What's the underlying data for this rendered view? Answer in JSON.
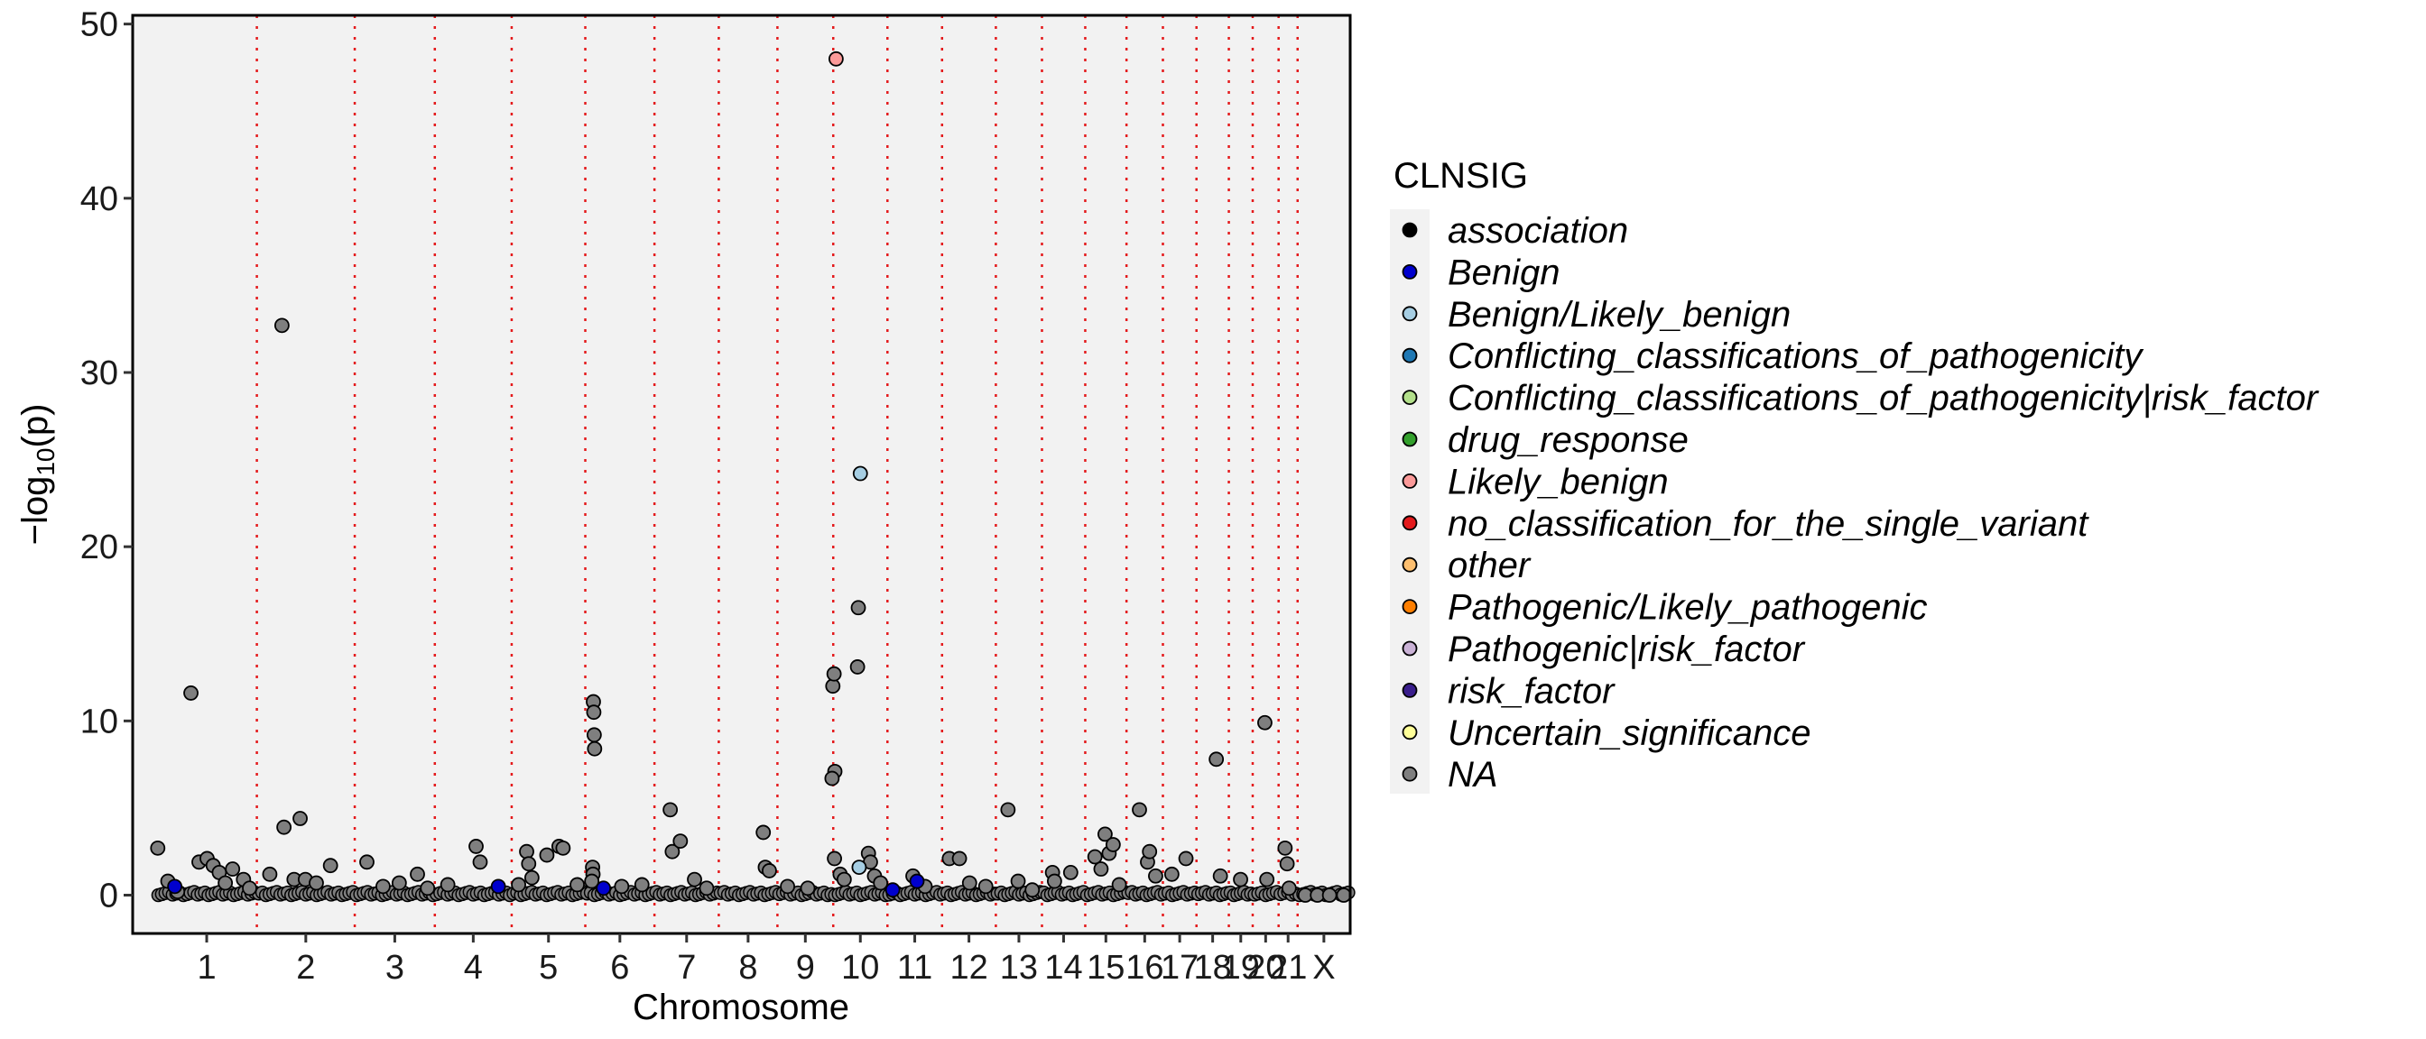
{
  "chart_data": {
    "type": "scatter",
    "title": "",
    "xlabel": "Chromosome",
    "ylabel_prefix": "−log",
    "ylabel_sub": "10",
    "ylabel_suffix": "(p)",
    "ylim": [
      -2.2,
      50.5
    ],
    "yticks": [
      0,
      10,
      20,
      30,
      40,
      50
    ],
    "grid": false,
    "background": "#f2f2f2",
    "separator_color": "#e41a1c",
    "chromosomes": [
      {
        "label": "1",
        "start": 0,
        "end": 248
      },
      {
        "label": "2",
        "start": 248,
        "end": 490
      },
      {
        "label": "3",
        "start": 490,
        "end": 688
      },
      {
        "label": "4",
        "start": 688,
        "end": 878
      },
      {
        "label": "5",
        "start": 878,
        "end": 1060
      },
      {
        "label": "6",
        "start": 1060,
        "end": 1231
      },
      {
        "label": "7",
        "start": 1231,
        "end": 1390
      },
      {
        "label": "8",
        "start": 1390,
        "end": 1535
      },
      {
        "label": "9",
        "start": 1535,
        "end": 1673
      },
      {
        "label": "10",
        "start": 1673,
        "end": 1807
      },
      {
        "label": "11",
        "start": 1807,
        "end": 1942
      },
      {
        "label": "12",
        "start": 1942,
        "end": 2075
      },
      {
        "label": "13",
        "start": 2075,
        "end": 2189
      },
      {
        "label": "14",
        "start": 2189,
        "end": 2296
      },
      {
        "label": "15",
        "start": 2296,
        "end": 2398
      },
      {
        "label": "16",
        "start": 2398,
        "end": 2488
      },
      {
        "label": "17",
        "start": 2488,
        "end": 2571
      },
      {
        "label": "18",
        "start": 2571,
        "end": 2651
      },
      {
        "label": "19",
        "start": 2651,
        "end": 2710
      },
      {
        "label": "20",
        "start": 2710,
        "end": 2774
      },
      {
        "label": "21",
        "start": 2774,
        "end": 2821
      },
      {
        "label": "X",
        "start": 2821,
        "end": 2951
      }
    ],
    "legend": {
      "title": "CLNSIG",
      "position": "right",
      "entries": [
        {
          "label": "association",
          "color": "#000000"
        },
        {
          "label": "Benign",
          "color": "#0000cd"
        },
        {
          "label": "Benign/Likely_benign",
          "color": "#a6cee3"
        },
        {
          "label": "Conflicting_classifications_of_pathogenicity",
          "color": "#1f78b4"
        },
        {
          "label": "Conflicting_classifications_of_pathogenicity|risk_factor",
          "color": "#b2df8a"
        },
        {
          "label": "drug_response",
          "color": "#33a02c"
        },
        {
          "label": "Likely_benign",
          "color": "#fb9a99"
        },
        {
          "label": "no_classification_for_the_single_variant",
          "color": "#e31a1c"
        },
        {
          "label": "other",
          "color": "#fdbf6f"
        },
        {
          "label": "Pathogenic/Likely_pathogenic",
          "color": "#ff7f00"
        },
        {
          "label": "Pathogenic|risk_factor",
          "color": "#cab2d6"
        },
        {
          "label": "risk_factor",
          "color": "#3a1e8c"
        },
        {
          "label": "Uncertain_significance",
          "color": "#ffff99"
        },
        {
          "label": "NA",
          "color": "#7f7f7f"
        }
      ]
    },
    "points": [
      {
        "x": 3,
        "y": 2.7,
        "c": "NA"
      },
      {
        "x": 28,
        "y": 0.8,
        "c": "NA"
      },
      {
        "x": 45,
        "y": 0.5,
        "c": "Benign"
      },
      {
        "x": 52,
        "y": 0.2,
        "c": "NA"
      },
      {
        "x": 85,
        "y": 11.6,
        "c": "NA"
      },
      {
        "x": 105,
        "y": 1.9,
        "c": "NA"
      },
      {
        "x": 125,
        "y": 2.1,
        "c": "NA"
      },
      {
        "x": 140,
        "y": 1.7,
        "c": "NA"
      },
      {
        "x": 155,
        "y": 1.3,
        "c": "NA"
      },
      {
        "x": 170,
        "y": 0.7,
        "c": "NA"
      },
      {
        "x": 188,
        "y": 1.5,
        "c": "NA"
      },
      {
        "x": 215,
        "y": 0.9,
        "c": "NA"
      },
      {
        "x": 230,
        "y": 0.4,
        "c": "NA"
      },
      {
        "x": 280,
        "y": 1.2,
        "c": "NA"
      },
      {
        "x": 310,
        "y": 32.7,
        "c": "NA"
      },
      {
        "x": 315,
        "y": 3.9,
        "c": "NA"
      },
      {
        "x": 355,
        "y": 4.4,
        "c": "NA"
      },
      {
        "x": 340,
        "y": 0.9,
        "c": "NA"
      },
      {
        "x": 368,
        "y": 0.9,
        "c": "NA"
      },
      {
        "x": 395,
        "y": 0.7,
        "c": "NA"
      },
      {
        "x": 430,
        "y": 1.7,
        "c": "NA"
      },
      {
        "x": 520,
        "y": 1.9,
        "c": "NA"
      },
      {
        "x": 560,
        "y": 0.5,
        "c": "NA"
      },
      {
        "x": 600,
        "y": 0.7,
        "c": "NA"
      },
      {
        "x": 645,
        "y": 1.2,
        "c": "NA"
      },
      {
        "x": 670,
        "y": 0.4,
        "c": "NA"
      },
      {
        "x": 720,
        "y": 0.6,
        "c": "NA"
      },
      {
        "x": 790,
        "y": 2.8,
        "c": "NA"
      },
      {
        "x": 800,
        "y": 1.9,
        "c": "NA"
      },
      {
        "x": 845,
        "y": 0.5,
        "c": "Benign"
      },
      {
        "x": 895,
        "y": 0.6,
        "c": "NA"
      },
      {
        "x": 915,
        "y": 2.5,
        "c": "NA"
      },
      {
        "x": 920,
        "y": 1.8,
        "c": "NA"
      },
      {
        "x": 928,
        "y": 1.0,
        "c": "NA"
      },
      {
        "x": 965,
        "y": 2.3,
        "c": "NA"
      },
      {
        "x": 995,
        "y": 2.8,
        "c": "NA"
      },
      {
        "x": 1005,
        "y": 2.7,
        "c": "NA"
      },
      {
        "x": 1040,
        "y": 0.6,
        "c": "NA"
      },
      {
        "x": 1080,
        "y": 11.1,
        "c": "NA"
      },
      {
        "x": 1081,
        "y": 10.5,
        "c": "NA"
      },
      {
        "x": 1082,
        "y": 9.2,
        "c": "NA"
      },
      {
        "x": 1083,
        "y": 8.4,
        "c": "NA"
      },
      {
        "x": 1078,
        "y": 1.6,
        "c": "NA"
      },
      {
        "x": 1079,
        "y": 1.2,
        "c": "NA"
      },
      {
        "x": 1076,
        "y": 0.8,
        "c": "NA"
      },
      {
        "x": 1105,
        "y": 0.4,
        "c": "Benign"
      },
      {
        "x": 1150,
        "y": 0.5,
        "c": "NA"
      },
      {
        "x": 1200,
        "y": 0.6,
        "c": "NA"
      },
      {
        "x": 1270,
        "y": 4.9,
        "c": "NA"
      },
      {
        "x": 1275,
        "y": 2.5,
        "c": "NA"
      },
      {
        "x": 1295,
        "y": 3.1,
        "c": "NA"
      },
      {
        "x": 1330,
        "y": 0.9,
        "c": "NA"
      },
      {
        "x": 1360,
        "y": 0.4,
        "c": "NA"
      },
      {
        "x": 1500,
        "y": 3.6,
        "c": "NA"
      },
      {
        "x": 1505,
        "y": 1.6,
        "c": "NA"
      },
      {
        "x": 1515,
        "y": 1.4,
        "c": "NA"
      },
      {
        "x": 1560,
        "y": 0.5,
        "c": "NA"
      },
      {
        "x": 1610,
        "y": 0.4,
        "c": "NA"
      },
      {
        "x": 1680,
        "y": 48.0,
        "c": "Likely_benign"
      },
      {
        "x": 1672,
        "y": 12.0,
        "c": "NA"
      },
      {
        "x": 1675,
        "y": 12.7,
        "c": "NA"
      },
      {
        "x": 1677,
        "y": 7.1,
        "c": "NA"
      },
      {
        "x": 1670,
        "y": 6.7,
        "c": "NA"
      },
      {
        "x": 1676,
        "y": 2.1,
        "c": "NA"
      },
      {
        "x": 1690,
        "y": 1.2,
        "c": "NA"
      },
      {
        "x": 1700,
        "y": 0.9,
        "c": "NA"
      },
      {
        "x": 1740,
        "y": 24.2,
        "c": "Benign/Likely_benign"
      },
      {
        "x": 1735,
        "y": 16.5,
        "c": "NA"
      },
      {
        "x": 1733,
        "y": 13.1,
        "c": "NA"
      },
      {
        "x": 1737,
        "y": 1.6,
        "c": "Benign/Likely_benign"
      },
      {
        "x": 1760,
        "y": 2.4,
        "c": "NA"
      },
      {
        "x": 1765,
        "y": 1.9,
        "c": "NA"
      },
      {
        "x": 1775,
        "y": 1.1,
        "c": "NA"
      },
      {
        "x": 1790,
        "y": 0.7,
        "c": "NA"
      },
      {
        "x": 1820,
        "y": 0.3,
        "c": "Benign"
      },
      {
        "x": 1870,
        "y": 1.1,
        "c": "NA"
      },
      {
        "x": 1880,
        "y": 0.8,
        "c": "Benign"
      },
      {
        "x": 1900,
        "y": 0.5,
        "c": "NA"
      },
      {
        "x": 1960,
        "y": 2.1,
        "c": "NA"
      },
      {
        "x": 1985,
        "y": 2.1,
        "c": "NA"
      },
      {
        "x": 2010,
        "y": 0.7,
        "c": "NA"
      },
      {
        "x": 2050,
        "y": 0.5,
        "c": "NA"
      },
      {
        "x": 2105,
        "y": 4.9,
        "c": "NA"
      },
      {
        "x": 2130,
        "y": 0.8,
        "c": "NA"
      },
      {
        "x": 2165,
        "y": 0.3,
        "c": "NA"
      },
      {
        "x": 2215,
        "y": 1.3,
        "c": "NA"
      },
      {
        "x": 2220,
        "y": 0.8,
        "c": "NA"
      },
      {
        "x": 2260,
        "y": 1.3,
        "c": "NA"
      },
      {
        "x": 2320,
        "y": 2.2,
        "c": "NA"
      },
      {
        "x": 2345,
        "y": 3.5,
        "c": "NA"
      },
      {
        "x": 2355,
        "y": 2.4,
        "c": "NA"
      },
      {
        "x": 2365,
        "y": 2.9,
        "c": "NA"
      },
      {
        "x": 2335,
        "y": 1.5,
        "c": "NA"
      },
      {
        "x": 2380,
        "y": 0.6,
        "c": "NA"
      },
      {
        "x": 2430,
        "y": 4.9,
        "c": "NA"
      },
      {
        "x": 2450,
        "y": 1.9,
        "c": "NA"
      },
      {
        "x": 2455,
        "y": 2.5,
        "c": "NA"
      },
      {
        "x": 2470,
        "y": 1.1,
        "c": "NA"
      },
      {
        "x": 2510,
        "y": 1.2,
        "c": "NA"
      },
      {
        "x": 2545,
        "y": 2.1,
        "c": "NA"
      },
      {
        "x": 2620,
        "y": 7.8,
        "c": "NA"
      },
      {
        "x": 2630,
        "y": 1.1,
        "c": "NA"
      },
      {
        "x": 2680,
        "y": 0.9,
        "c": "NA"
      },
      {
        "x": 2740,
        "y": 9.9,
        "c": "NA"
      },
      {
        "x": 2745,
        "y": 0.9,
        "c": "NA"
      },
      {
        "x": 2790,
        "y": 2.7,
        "c": "NA"
      },
      {
        "x": 2795,
        "y": 1.8,
        "c": "NA"
      },
      {
        "x": 2800,
        "y": 0.4,
        "c": "NA"
      },
      {
        "x": 2840,
        "y": 0.0,
        "c": "NA"
      },
      {
        "x": 2870,
        "y": 0.0,
        "c": "NA"
      },
      {
        "x": 2900,
        "y": 0.0,
        "c": "NA"
      },
      {
        "x": 2935,
        "y": 0.0,
        "c": "NA"
      }
    ]
  }
}
